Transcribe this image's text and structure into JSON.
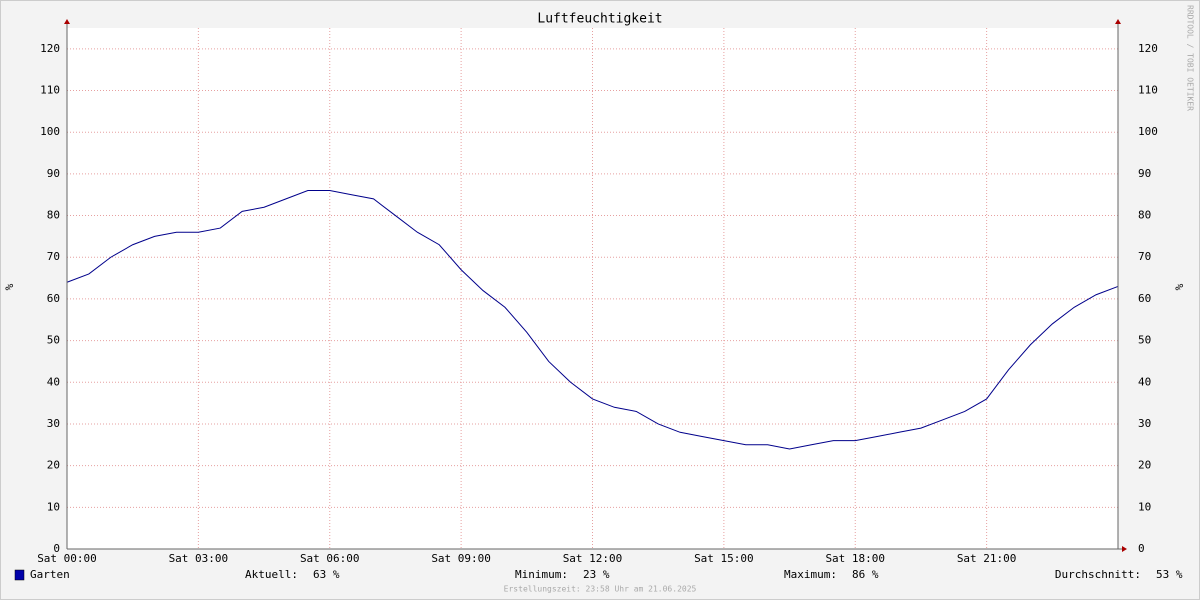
{
  "chart_data": {
    "type": "line",
    "title": "Luftfeuchtigkeit",
    "y_label": "%",
    "credit": "RRDTOOL / TOBI OETIKER",
    "footer": "Erstellungszeit: 23:58 Uhr am 21.06.2025",
    "x": [
      0,
      0.5,
      1,
      1.5,
      2,
      2.5,
      3,
      3.5,
      4,
      4.5,
      5,
      5.5,
      6,
      6.5,
      7,
      7.5,
      8,
      8.5,
      9,
      9.5,
      10,
      10.5,
      11,
      11.5,
      12,
      12.5,
      13,
      13.5,
      14,
      14.5,
      15,
      15.5,
      16,
      16.5,
      17,
      17.5,
      18,
      18.5,
      19,
      19.5,
      20,
      20.5,
      21,
      21.5,
      22,
      22.5,
      23,
      23.5,
      24
    ],
    "series": [
      {
        "name": "Garten",
        "color": "#00008b",
        "values": [
          64,
          66,
          70,
          73,
          75,
          76,
          76,
          77,
          81,
          82,
          84,
          86,
          86,
          85,
          84,
          80,
          76,
          73,
          67,
          62,
          58,
          52,
          45,
          40,
          36,
          34,
          33,
          30,
          28,
          27,
          26,
          25,
          25,
          24,
          25,
          26,
          26,
          27,
          28,
          29,
          31,
          33,
          36,
          43,
          49,
          54,
          58,
          61,
          63
        ]
      }
    ],
    "legend_color": "#0000aa",
    "stats": [
      {
        "label": "Aktuell:",
        "value": "63 %"
      },
      {
        "label": "Minimum:",
        "value": "23 %"
      },
      {
        "label": "Maximum:",
        "value": "86 %"
      },
      {
        "label": "Durchschnitt:",
        "value": "53 %"
      }
    ],
    "xlim": [
      0,
      24
    ],
    "xticks": [
      {
        "value": 0,
        "label": "Sat 00:00"
      },
      {
        "value": 3,
        "label": "Sat 03:00"
      },
      {
        "value": 6,
        "label": "Sat 06:00"
      },
      {
        "value": 9,
        "label": "Sat 09:00"
      },
      {
        "value": 12,
        "label": "Sat 12:00"
      },
      {
        "value": 15,
        "label": "Sat 15:00"
      },
      {
        "value": 18,
        "label": "Sat 18:00"
      },
      {
        "value": 21,
        "label": "Sat 21:00"
      }
    ],
    "ylim": [
      0,
      125
    ],
    "yticks": [
      0,
      10,
      20,
      30,
      40,
      50,
      60,
      70,
      80,
      90,
      100,
      110,
      120
    ],
    "grid": true
  }
}
